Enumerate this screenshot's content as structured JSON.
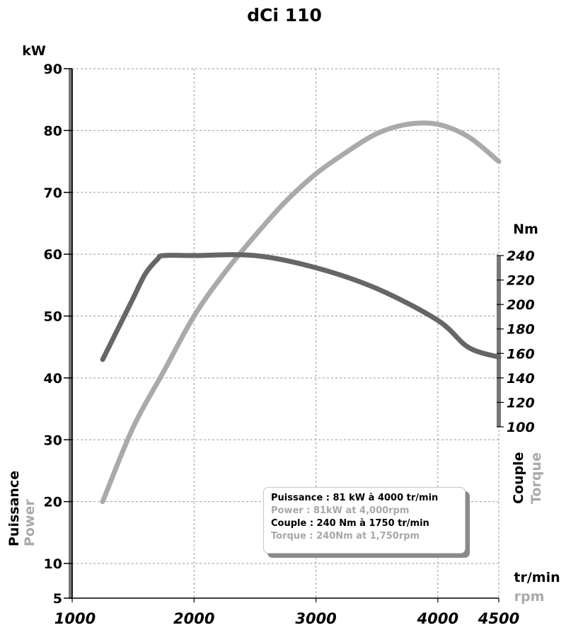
{
  "chart_data": {
    "type": "line",
    "title": "dCi 110",
    "x_unit": "tr/min",
    "x_unit_en": "rpm",
    "xlim": [
      1000,
      4500
    ],
    "x_ticks": [
      1000,
      2000,
      3000,
      4000,
      4500
    ],
    "y_left": {
      "unit": "kW",
      "label": "Puissance",
      "label_en": "Power",
      "ticks": [
        5,
        10,
        20,
        30,
        40,
        50,
        60,
        70,
        80,
        90
      ]
    },
    "y_right": {
      "unit": "Nm",
      "label": "Couple",
      "label_en": "Torque",
      "ticks": [
        100,
        120,
        140,
        160,
        180,
        200,
        220,
        240
      ]
    },
    "grid": true,
    "series": [
      {
        "name": "Power",
        "axis": "left",
        "color": "#aaaaaa",
        "x": [
          1250,
          1500,
          1750,
          2000,
          2250,
          2500,
          2750,
          3000,
          3250,
          3500,
          3750,
          4000,
          4250,
          4500
        ],
        "y": [
          20,
          32,
          41,
          50,
          57,
          63,
          68.5,
          73,
          76.5,
          79.5,
          81,
          81,
          79,
          75
        ]
      },
      {
        "name": "Torque",
        "axis": "right",
        "color": "#666666",
        "x": [
          1250,
          1400,
          1500,
          1600,
          1700,
          1750,
          2000,
          2500,
          3000,
          3500,
          4000,
          4250,
          4500
        ],
        "y": [
          155,
          185,
          205,
          225,
          237,
          240,
          240,
          240,
          230,
          213,
          187,
          165,
          157
        ]
      }
    ],
    "legend": {
      "position": "bottom-right",
      "lines": [
        {
          "text": "Puissance : 81 kW à 4000 tr/min",
          "color": "#000000"
        },
        {
          "text": "Power : 81kW at 4,000rpm",
          "color": "#a8a8a8"
        },
        {
          "text": "Couple : 240 Nm à 1750 tr/min",
          "color": "#000000"
        },
        {
          "text": "Torque : 240Nm at 1,750rpm",
          "color": "#a8a8a8"
        }
      ]
    }
  }
}
